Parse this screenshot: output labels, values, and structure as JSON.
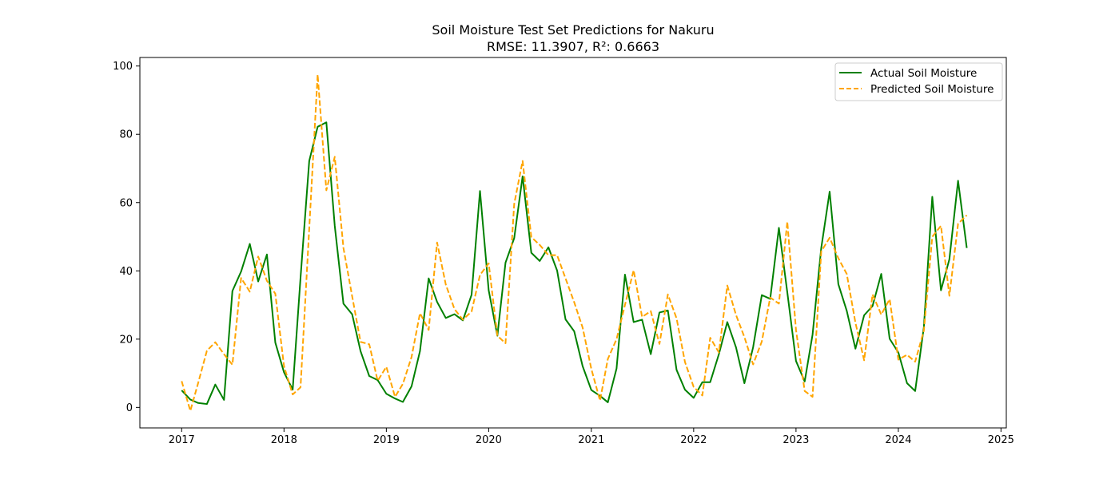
{
  "chart_data": {
    "type": "line",
    "title": "Soil Moisture Test Set Predictions for Nakuru",
    "subtitle": "RMSE: 11.3907, R²: 0.6663",
    "xlabel": "",
    "ylabel": "",
    "xlim": [
      "2016-08-05",
      "2025-01-20"
    ],
    "ylim": [
      -6,
      102.5
    ],
    "x_ticks": [
      "2017",
      "2018",
      "2019",
      "2020",
      "2021",
      "2022",
      "2023",
      "2024",
      "2025"
    ],
    "y_ticks": [
      0,
      20,
      40,
      60,
      80,
      100
    ],
    "grid": false,
    "legend_position": "top-right",
    "x": [
      "2017-01-01",
      "2017-02-01",
      "2017-03-01",
      "2017-04-01",
      "2017-05-01",
      "2017-06-01",
      "2017-07-01",
      "2017-08-01",
      "2017-09-01",
      "2017-10-01",
      "2017-11-01",
      "2017-12-01",
      "2018-01-01",
      "2018-02-01",
      "2018-03-01",
      "2018-04-01",
      "2018-05-01",
      "2018-06-01",
      "2018-07-01",
      "2018-08-01",
      "2018-09-01",
      "2018-10-01",
      "2018-11-01",
      "2018-12-01",
      "2019-01-01",
      "2019-02-01",
      "2019-03-01",
      "2019-04-01",
      "2019-05-01",
      "2019-06-01",
      "2019-07-01",
      "2019-08-01",
      "2019-09-01",
      "2019-10-01",
      "2019-11-01",
      "2019-12-01",
      "2020-01-01",
      "2020-02-01",
      "2020-03-01",
      "2020-04-01",
      "2020-05-01",
      "2020-06-01",
      "2020-07-01",
      "2020-08-01",
      "2020-09-01",
      "2020-10-01",
      "2020-11-01",
      "2020-12-01",
      "2021-01-01",
      "2021-02-01",
      "2021-03-01",
      "2021-04-01",
      "2021-05-01",
      "2021-06-01",
      "2021-07-01",
      "2021-08-01",
      "2021-09-01",
      "2021-10-01",
      "2021-11-01",
      "2021-12-01",
      "2022-01-01",
      "2022-02-01",
      "2022-03-01",
      "2022-04-01",
      "2022-05-01",
      "2022-06-01",
      "2022-07-01",
      "2022-08-01",
      "2022-09-01",
      "2022-10-01",
      "2022-11-01",
      "2022-12-01",
      "2023-01-01",
      "2023-02-01",
      "2023-03-01",
      "2023-04-01",
      "2023-05-01",
      "2023-06-01",
      "2023-07-01",
      "2023-08-01",
      "2023-09-01",
      "2023-10-01",
      "2023-11-01",
      "2023-12-01",
      "2024-01-01",
      "2024-02-01",
      "2024-03-01",
      "2024-04-01",
      "2024-05-01",
      "2024-06-01",
      "2024-07-01",
      "2024-08-01",
      "2024-09-01"
    ],
    "series": [
      {
        "name": "Actual Soil Moisture",
        "color": "#008000",
        "style": "solid",
        "values": [
          5.0,
          2.3,
          1.3,
          1.0,
          6.7,
          2.2,
          34.1,
          39.8,
          47.9,
          36.9,
          44.8,
          19.0,
          10.3,
          5.2,
          38.0,
          72.2,
          82.2,
          83.5,
          53.2,
          30.4,
          27.3,
          16.5,
          9.2,
          8.0,
          4.0,
          2.6,
          1.6,
          6.2,
          16.5,
          37.8,
          30.9,
          26.2,
          27.3,
          25.5,
          33.0,
          63.4,
          34.3,
          21.0,
          42.4,
          49.6,
          67.7,
          45.3,
          42.9,
          46.9,
          40.1,
          25.8,
          22.3,
          12.1,
          5.1,
          3.4,
          1.5,
          11.4,
          38.9,
          25.0,
          25.7,
          15.6,
          27.8,
          28.4,
          11.0,
          5.2,
          2.8,
          7.4,
          7.4,
          15.6,
          25.0,
          17.6,
          7.1,
          17.6,
          32.9,
          31.8,
          52.6,
          33.7,
          13.6,
          7.6,
          21.3,
          46.7,
          63.2,
          36.1,
          28.3,
          17.2,
          27.0,
          29.7,
          39.1,
          20.1,
          16.1,
          7.1,
          4.8,
          23.5,
          61.7,
          34.3,
          43.4,
          66.4,
          46.7
        ]
      },
      {
        "name": "Predicted Soil Moisture",
        "color": "#ffa500",
        "style": "dashed",
        "values": [
          7.7,
          -1.0,
          7.2,
          16.6,
          19.1,
          15.6,
          12.5,
          37.9,
          33.9,
          44.2,
          37.1,
          33.3,
          12.1,
          3.8,
          5.9,
          52.4,
          97.5,
          63.6,
          73.4,
          46.7,
          32.6,
          19.2,
          18.5,
          7.8,
          11.9,
          3.1,
          6.9,
          14.8,
          27.6,
          22.7,
          48.3,
          36.0,
          28.8,
          25.7,
          28.1,
          38.8,
          42.2,
          21.0,
          18.8,
          59.6,
          72.2,
          49.9,
          47.6,
          44.6,
          44.6,
          37.8,
          30.8,
          23.4,
          11.3,
          2.0,
          14.2,
          20.0,
          30.0,
          40.2,
          26.5,
          28.2,
          18.6,
          33.1,
          26.1,
          13.3,
          6.0,
          3.5,
          20.4,
          16.1,
          35.7,
          27.1,
          20.6,
          12.6,
          19.3,
          32.2,
          30.4,
          54.4,
          22.7,
          4.8,
          3.1,
          45.7,
          49.7,
          43.7,
          39.1,
          24.8,
          13.8,
          33.1,
          27.2,
          31.7,
          14.0,
          15.4,
          13.4,
          22.5,
          50.0,
          53.2,
          32.7,
          53.8,
          56.3
        ]
      }
    ]
  }
}
